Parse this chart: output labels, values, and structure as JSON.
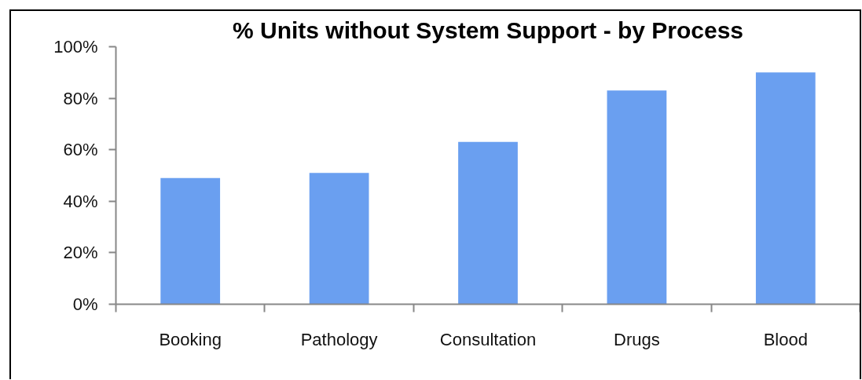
{
  "chart_data": {
    "type": "bar",
    "title": "% Units without System Support - by Process",
    "categories": [
      "Booking",
      "Pathology",
      "Consultation",
      "Drugs",
      "Blood"
    ],
    "values": [
      49,
      51,
      63,
      83,
      90
    ],
    "color": "#6a9ff0",
    "ylim": [
      0,
      100
    ],
    "yticks": [
      {
        "value": 0,
        "label": "0%"
      },
      {
        "value": 20,
        "label": "20%"
      },
      {
        "value": 40,
        "label": "40%"
      },
      {
        "value": 60,
        "label": "60%"
      },
      {
        "value": 80,
        "label": "80%"
      },
      {
        "value": 100,
        "label": "100%"
      }
    ]
  }
}
